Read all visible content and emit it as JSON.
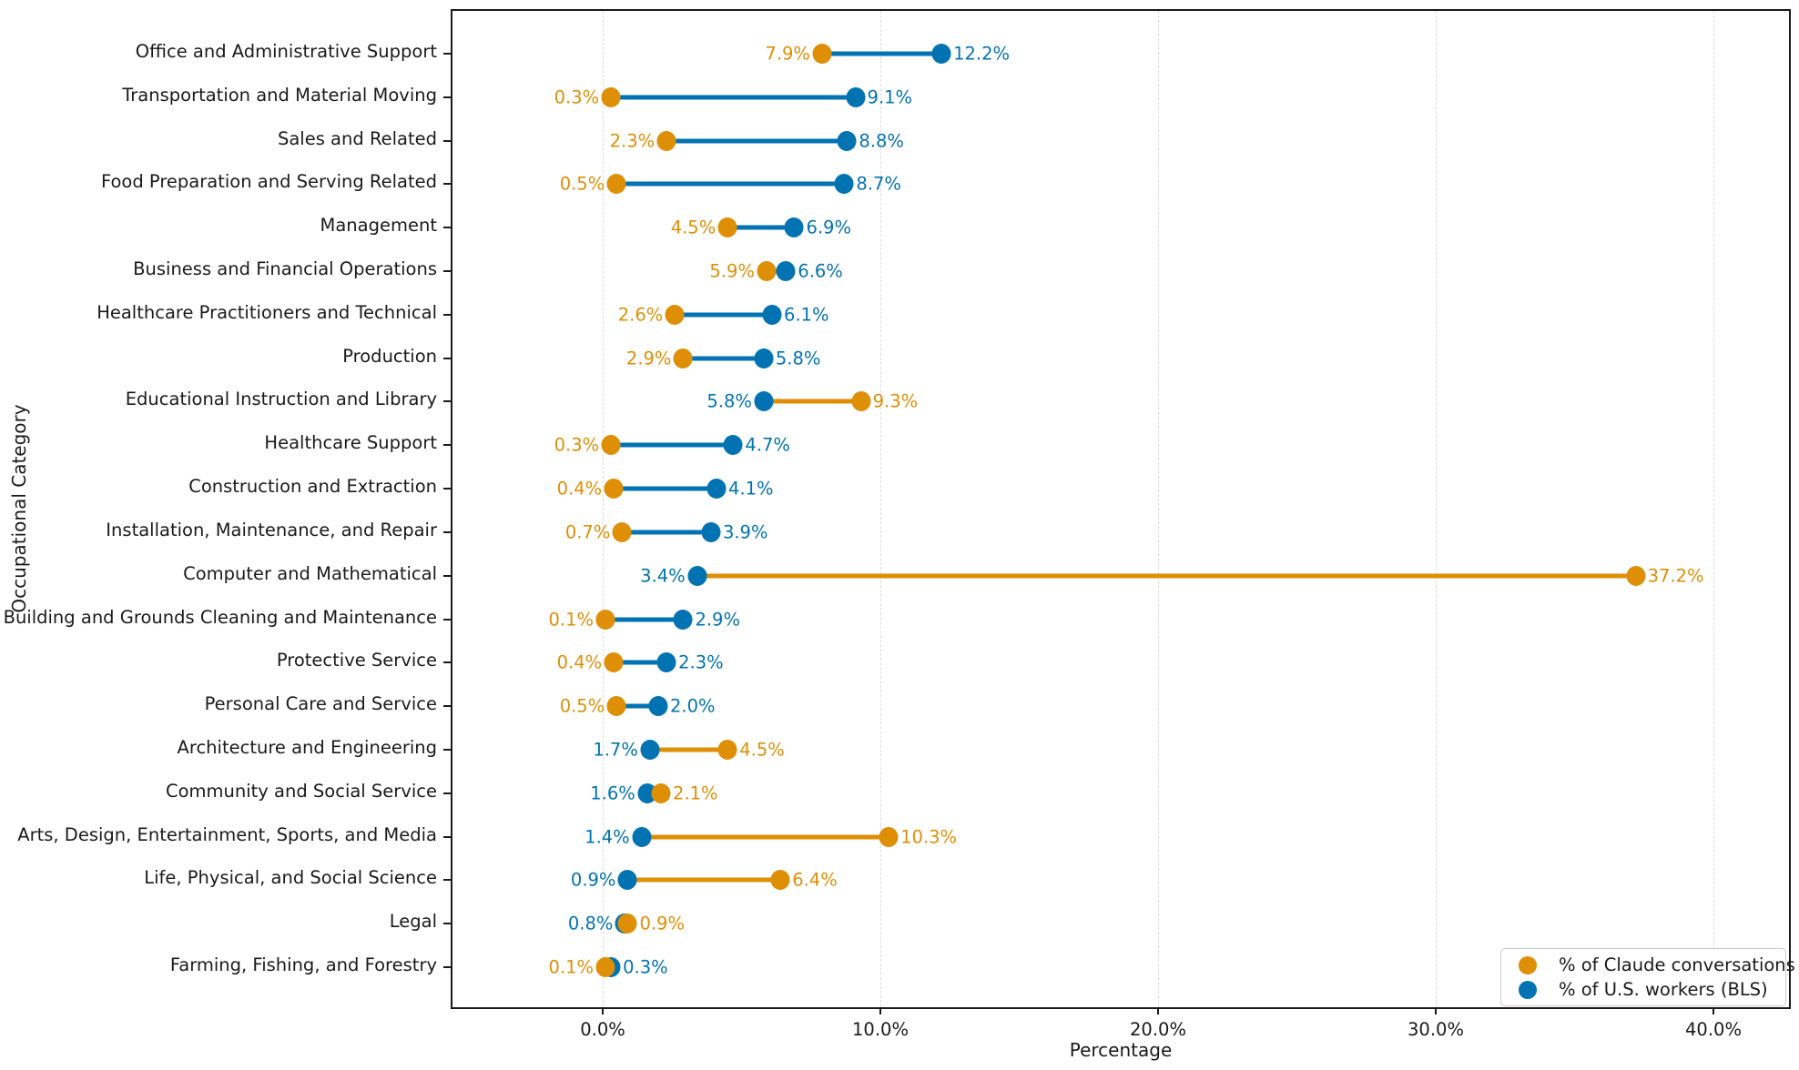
{
  "chart_data": {
    "type": "dumbbell",
    "title": "",
    "xlabel": "Percentage",
    "ylabel": "Occupational Category",
    "xlim": [
      -5.5,
      42.8
    ],
    "grid": "vertical-dashed",
    "xticks": {
      "values": [
        0,
        10,
        20,
        30,
        40
      ],
      "labels": [
        "0.0%",
        "10.0%",
        "20.0%",
        "30.0%",
        "40.0%"
      ]
    },
    "categories": [
      "Office and Administrative Support",
      "Transportation and Material Moving",
      "Sales and Related",
      "Food Preparation and Serving Related",
      "Management",
      "Business and Financial Operations",
      "Healthcare Practitioners and Technical",
      "Production",
      "Educational Instruction and Library",
      "Healthcare Support",
      "Construction and Extraction",
      "Installation, Maintenance, and Repair",
      "Computer and Mathematical",
      "Building and Grounds Cleaning and Maintenance",
      "Protective Service",
      "Personal Care and Service",
      "Architecture and Engineering",
      "Community and Social Service",
      "Arts, Design, Entertainment, Sports, and Media",
      "Life, Physical, and Social Science",
      "Legal",
      "Farming, Fishing, and Forestry"
    ],
    "series": [
      {
        "name": "% of Claude conversations",
        "color": "#de8f05",
        "values": [
          7.9,
          0.3,
          2.3,
          0.5,
          4.5,
          5.9,
          2.6,
          2.9,
          9.3,
          0.3,
          0.4,
          0.7,
          37.2,
          0.1,
          0.4,
          0.5,
          4.5,
          2.1,
          10.3,
          6.4,
          0.9,
          0.1
        ],
        "labels": [
          "7.9%",
          "0.3%",
          "2.3%",
          "0.5%",
          "4.5%",
          "5.9%",
          "2.6%",
          "2.9%",
          "9.3%",
          "0.3%",
          "0.4%",
          "0.7%",
          "37.2%",
          "0.1%",
          "0.4%",
          "0.5%",
          "4.5%",
          "2.1%",
          "10.3%",
          "6.4%",
          "0.9%",
          "0.1%"
        ]
      },
      {
        "name": "% of U.S. workers (BLS)",
        "color": "#0173b2",
        "values": [
          12.2,
          9.1,
          8.8,
          8.7,
          6.9,
          6.6,
          6.1,
          5.8,
          5.8,
          4.7,
          4.1,
          3.9,
          3.4,
          2.9,
          2.3,
          2.0,
          1.7,
          1.6,
          1.4,
          0.9,
          0.8,
          0.3
        ],
        "labels": [
          "12.2%",
          "9.1%",
          "8.8%",
          "8.7%",
          "6.9%",
          "6.6%",
          "6.1%",
          "5.8%",
          "5.8%",
          "4.7%",
          "4.1%",
          "3.9%",
          "3.4%",
          "2.9%",
          "2.3%",
          "2.0%",
          "1.7%",
          "1.6%",
          "1.4%",
          "0.9%",
          "0.8%",
          "0.3%"
        ]
      }
    ],
    "legend": {
      "position": "lower-right",
      "entries": [
        {
          "label": "% of Claude conversations",
          "color": "#de8f05"
        },
        {
          "label": "% of U.S. workers (BLS)",
          "color": "#0173b2"
        }
      ]
    },
    "colors": {
      "text": "#1a1a1a",
      "gridline": "#dcdcdc",
      "axis_border": "#1a1a1a",
      "background": "#ffffff"
    }
  }
}
